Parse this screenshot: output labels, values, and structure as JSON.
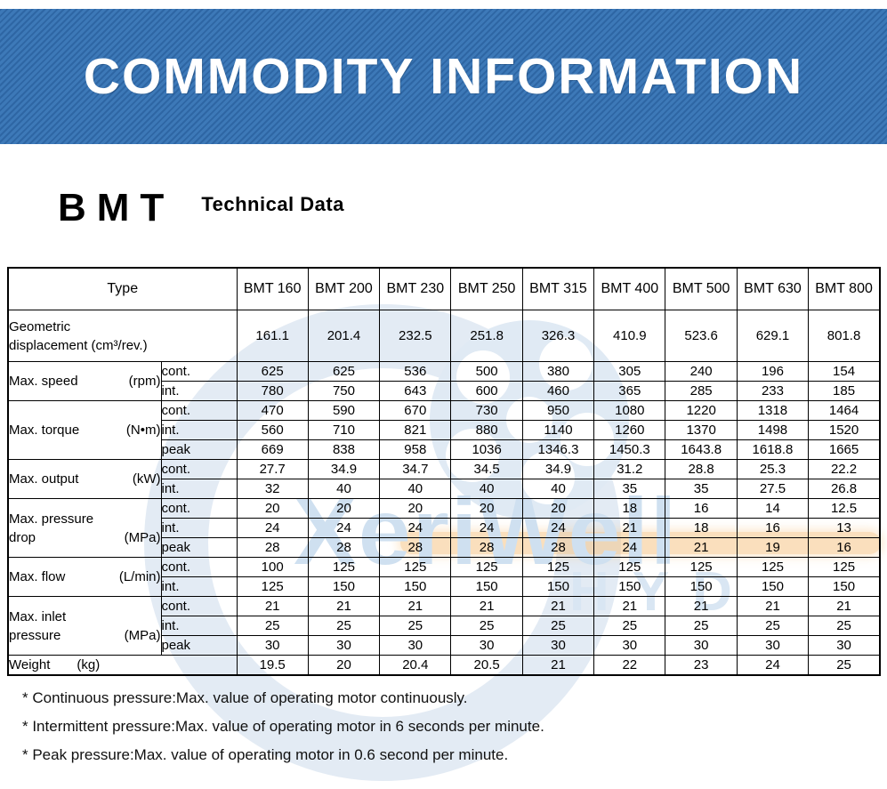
{
  "banner": {
    "title": "COMMODITY INFORMATION"
  },
  "header": {
    "product": "BMT",
    "subtitle": "Technical Data"
  },
  "watermark": {
    "brand": "XeriWell",
    "sub": "HYD"
  },
  "colors": {
    "banner_blue": "#3470b0",
    "banner_stripe_dark": "#2e66a4",
    "banner_stripe_light": "#3d79b8",
    "watermark_blue": "#dde9f4",
    "watermark_orange": "#f6c587",
    "text": "#000000"
  },
  "table": {
    "corner_label": "Type",
    "models": [
      "BMT 160",
      "BMT 200",
      "BMT 230",
      "BMT 250",
      "BMT 315",
      "BMT 400",
      "BMT 500",
      "BMT 630",
      "BMT 800"
    ],
    "groups": [
      {
        "id": "geometric-displacement",
        "type": "merged2line",
        "line1": "Geometric",
        "line2": "displacement (cm³/rev.)",
        "rows": [
          {
            "tag": null,
            "values": [
              "161.1",
              "201.4",
              "232.5",
              "251.8",
              "326.3",
              "410.9",
              "523.6",
              "629.1",
              "801.8"
            ]
          }
        ]
      },
      {
        "id": "max-speed",
        "type": "group",
        "label": "Max. speed",
        "unit": "(rpm)",
        "rows": [
          {
            "tag": "cont.",
            "values": [
              "625",
              "625",
              "536",
              "500",
              "380",
              "305",
              "240",
              "196",
              "154"
            ]
          },
          {
            "tag": "int.",
            "values": [
              "780",
              "750",
              "643",
              "600",
              "460",
              "365",
              "285",
              "233",
              "185"
            ]
          }
        ]
      },
      {
        "id": "max-torque",
        "type": "group",
        "label": "Max. torque",
        "unit": "(N•m)",
        "rows": [
          {
            "tag": "cont.",
            "values": [
              "470",
              "590",
              "670",
              "730",
              "950",
              "1080",
              "1220",
              "1318",
              "1464"
            ]
          },
          {
            "tag": "int.",
            "values": [
              "560",
              "710",
              "821",
              "880",
              "1140",
              "1260",
              "1370",
              "1498",
              "1520"
            ]
          },
          {
            "tag": "peak",
            "values": [
              "669",
              "838",
              "958",
              "1036",
              "1346.3",
              "1450.3",
              "1643.8",
              "1618.8",
              "1665"
            ]
          }
        ]
      },
      {
        "id": "max-output",
        "type": "group",
        "label": "Max. output",
        "unit": "(kW)",
        "rows": [
          {
            "tag": "cont.",
            "values": [
              "27.7",
              "34.9",
              "34.7",
              "34.5",
              "34.9",
              "31.2",
              "28.8",
              "25.3",
              "22.2"
            ]
          },
          {
            "tag": "int.",
            "values": [
              "32",
              "40",
              "40",
              "40",
              "40",
              "35",
              "35",
              "27.5",
              "26.8"
            ]
          }
        ]
      },
      {
        "id": "max-pressure-drop",
        "type": "group2",
        "label1": "Max. pressure",
        "label2": "drop",
        "unit": "(MPa)",
        "rows": [
          {
            "tag": "cont.",
            "values": [
              "20",
              "20",
              "20",
              "20",
              "20",
              "18",
              "16",
              "14",
              "12.5"
            ]
          },
          {
            "tag": "int.",
            "values": [
              "24",
              "24",
              "24",
              "24",
              "24",
              "21",
              "18",
              "16",
              "13"
            ]
          },
          {
            "tag": "peak",
            "values": [
              "28",
              "28",
              "28",
              "28",
              "28",
              "24",
              "21",
              "19",
              "16"
            ]
          }
        ]
      },
      {
        "id": "max-flow",
        "type": "group",
        "label": "Max. flow",
        "unit": "(L/min)",
        "rows": [
          {
            "tag": "cont.",
            "values": [
              "100",
              "125",
              "125",
              "125",
              "125",
              "125",
              "125",
              "125",
              "125"
            ]
          },
          {
            "tag": "int.",
            "values": [
              "125",
              "150",
              "150",
              "150",
              "150",
              "150",
              "150",
              "150",
              "150"
            ]
          }
        ]
      },
      {
        "id": "max-inlet-pressure",
        "type": "group2",
        "label1": "Max. inlet",
        "label2": "pressure",
        "unit": "(MPa)",
        "rows": [
          {
            "tag": "cont.",
            "values": [
              "21",
              "21",
              "21",
              "21",
              "21",
              "21",
              "21",
              "21",
              "21"
            ]
          },
          {
            "tag": "int.",
            "values": [
              "25",
              "25",
              "25",
              "25",
              "25",
              "25",
              "25",
              "25",
              "25"
            ]
          },
          {
            "tag": "peak",
            "values": [
              "30",
              "30",
              "30",
              "30",
              "30",
              "30",
              "30",
              "30",
              "30"
            ]
          }
        ]
      },
      {
        "id": "weight",
        "type": "mergedunit",
        "label": "Weight",
        "unit": "(kg)",
        "rows": [
          {
            "tag": null,
            "values": [
              "19.5",
              "20",
              "20.4",
              "20.5",
              "21",
              "22",
              "23",
              "24",
              "25"
            ]
          }
        ]
      }
    ]
  },
  "footnotes": [
    "* Continuous pressure:Max. value of operating motor continuously.",
    "* Intermittent pressure:Max. value of operating motor in 6 seconds per minute.",
    "* Peak pressure:Max. value of operating motor in 0.6 second per minute."
  ]
}
